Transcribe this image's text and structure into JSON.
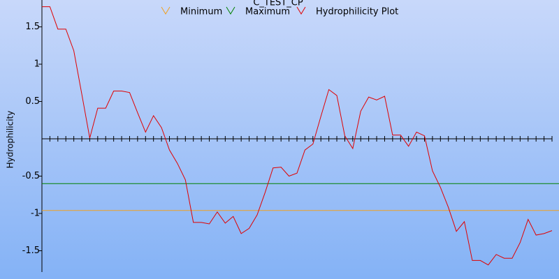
{
  "chart_data": {
    "type": "line",
    "title": "C_TEST_CP",
    "y_label": "Hydrophilicity",
    "ylim": [
      -1.785,
      1.86
    ],
    "yticks": [
      1.5,
      1,
      0.5,
      -0.5,
      -1,
      -1.5
    ],
    "series": [
      {
        "name": "Minimum",
        "color": "#f0a020",
        "value": -0.96
      },
      {
        "name": "Maximum",
        "color": "#008000",
        "value": -0.6
      },
      {
        "name": "Hydrophilicity Plot",
        "color": "#e00000",
        "values": [
          1.77,
          1.77,
          1.47,
          1.47,
          1.18,
          0.6,
          0.01,
          0.41,
          0.41,
          0.64,
          0.64,
          0.62,
          0.35,
          0.09,
          0.31,
          0.15,
          -0.15,
          -0.33,
          -0.55,
          -1.12,
          -1.12,
          -1.14,
          -0.98,
          -1.13,
          -1.04,
          -1.27,
          -1.2,
          -1.02,
          -0.72,
          -0.39,
          -0.38,
          -0.5,
          -0.46,
          -0.15,
          -0.07,
          0.3,
          0.66,
          0.58,
          0.04,
          -0.13,
          0.37,
          0.56,
          0.52,
          0.57,
          0.05,
          0.05,
          -0.1,
          0.09,
          0.04,
          -0.43,
          -0.65,
          -0.92,
          -1.24,
          -1.11,
          -1.63,
          -1.63,
          -1.69,
          -1.55,
          -1.6,
          -1.6,
          -1.39,
          -1.08,
          -1.29,
          -1.27,
          -1.23
        ]
      }
    ]
  }
}
